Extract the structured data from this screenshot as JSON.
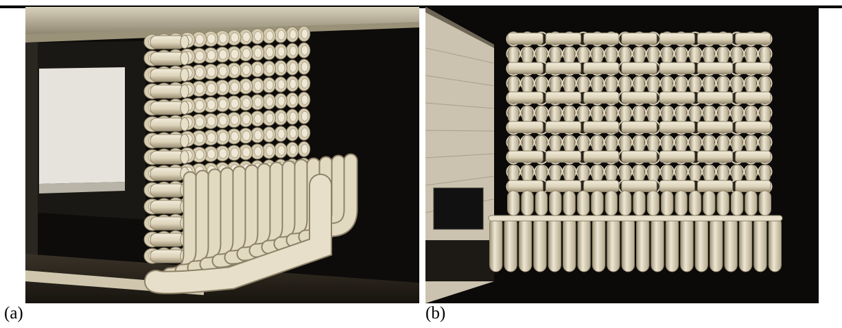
{
  "figure": {
    "panels": [
      {
        "id": "a",
        "caption": "(a)",
        "subject": "photo-pvc-pipe-array-side-view"
      },
      {
        "id": "b",
        "caption": "(b)",
        "subject": "photo-pvc-pipe-array-front-view"
      }
    ],
    "colors": {
      "background": "#0b0a09",
      "pipe": "#e4dcc6",
      "pipe_shade": "#b7ab8e",
      "pipe_dark": "#8d8268",
      "wall": "#cfc7b4",
      "frame": "#c9c1a8"
    }
  }
}
